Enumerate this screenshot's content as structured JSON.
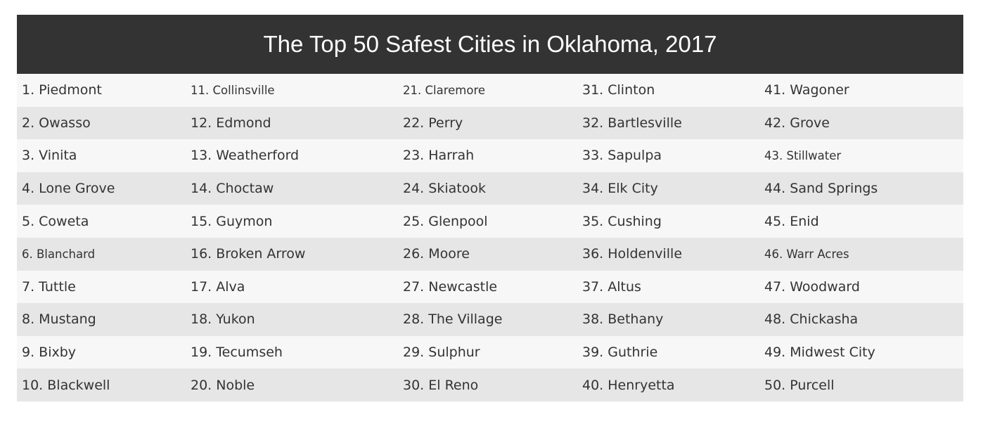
{
  "header": {
    "title": "The Top 50 Safest Cities in Oklahoma, 2017"
  },
  "table": {
    "rows": [
      [
        "1. Piedmont",
        "11. Collinsville",
        "21. Claremore",
        "31. Clinton",
        "41. Wagoner"
      ],
      [
        "2. Owasso",
        "12. Edmond",
        "22. Perry",
        "32. Bartlesville",
        "42. Grove"
      ],
      [
        "3. Vinita",
        "13. Weatherford",
        "23. Harrah",
        "33. Sapulpa",
        "43. Stillwater"
      ],
      [
        "4. Lone Grove",
        "14. Choctaw",
        "24. Skiatook",
        "34. Elk City",
        "44. Sand Springs"
      ],
      [
        "5. Coweta",
        "15. Guymon",
        "25. Glenpool",
        "35. Cushing",
        "45. Enid"
      ],
      [
        "6. Blanchard",
        "16. Broken Arrow",
        "26. Moore",
        "36. Holdenville",
        "46. Warr Acres"
      ],
      [
        "7. Tuttle",
        "17. Alva",
        "27. Newcastle",
        "37. Altus",
        "47. Woodward"
      ],
      [
        "8. Mustang",
        "18. Yukon",
        "28. The Village",
        "38. Bethany",
        "48. Chickasha"
      ],
      [
        "9. Bixby",
        "19. Tecumseh",
        "29. Sulphur",
        "39. Guthrie",
        "49. Midwest City"
      ],
      [
        "10. Blackwell",
        "20. Noble",
        "30. El Reno",
        "40. Henryetta",
        "50. Purcell"
      ]
    ]
  }
}
